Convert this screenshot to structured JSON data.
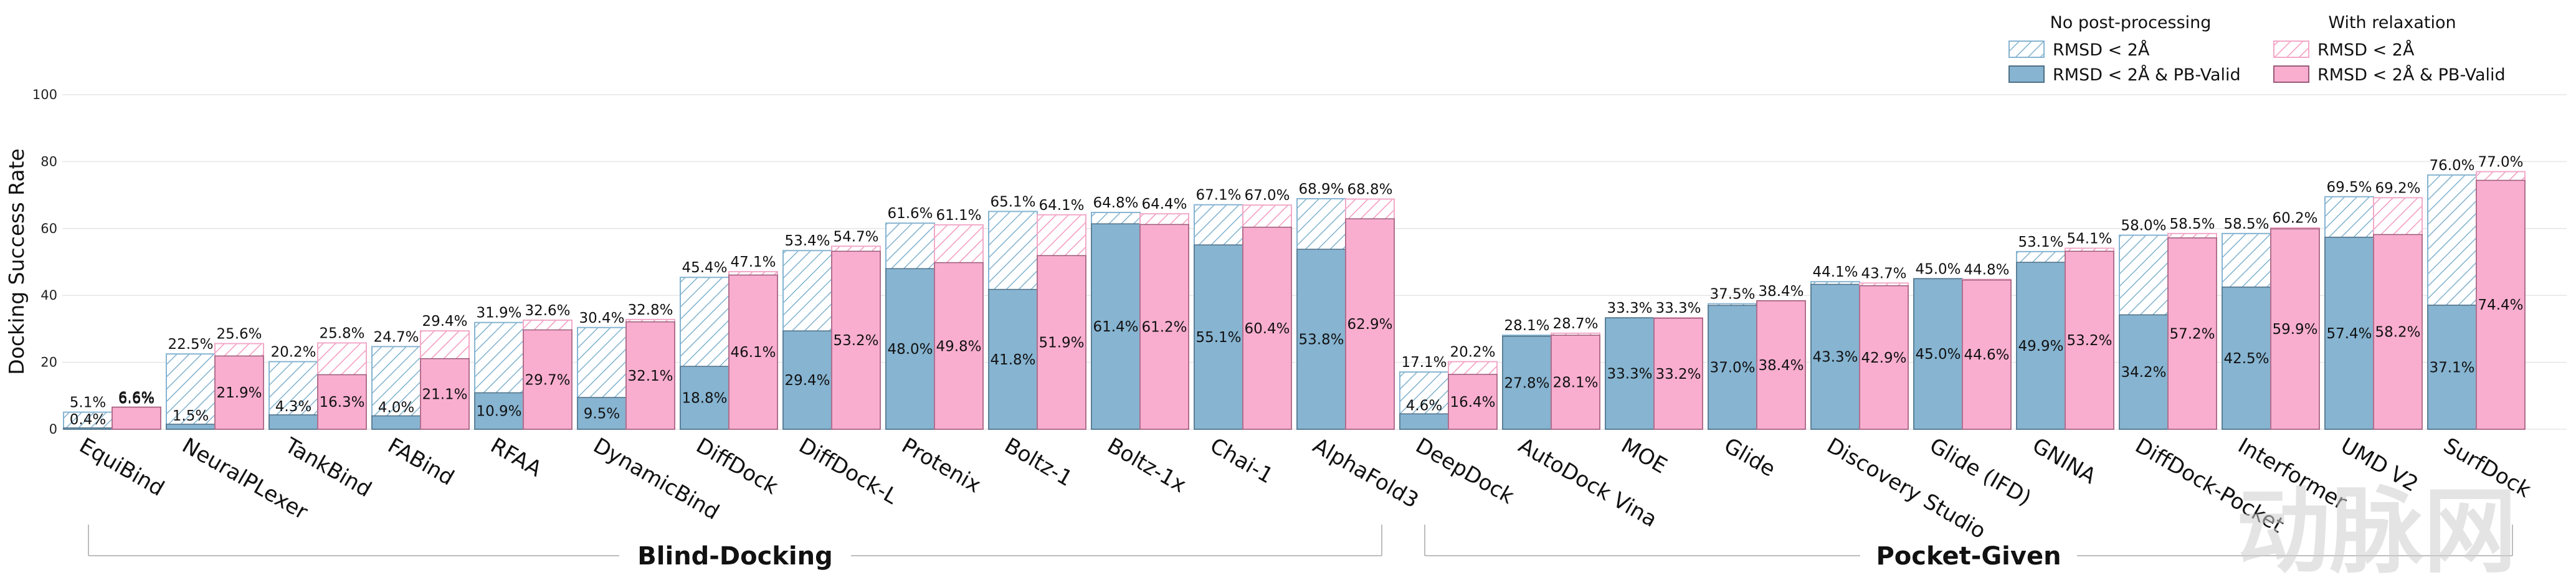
{
  "chart_data": {
    "type": "bar",
    "ylabel": "Docking Success Rate",
    "ylim": [
      0,
      100
    ],
    "yticks": [
      0,
      20,
      40,
      60,
      80,
      100
    ],
    "grid": true,
    "legend": {
      "position": "top-right",
      "header_left": "No post-processing",
      "header_right": "With relaxation",
      "entries": [
        {
          "name": "RMSD < 2Å",
          "group": "No post-processing",
          "style": "hatched",
          "color": "#86b4d1"
        },
        {
          "name": "RMSD < 2Å & PB-Valid",
          "group": "No post-processing",
          "style": "solid",
          "color": "#86b4d1"
        },
        {
          "name": "RMSD < 2Å",
          "group": "With relaxation",
          "style": "hatched",
          "color": "#f2a9c8"
        },
        {
          "name": "RMSD < 2Å & PB-Valid",
          "group": "With relaxation",
          "style": "solid",
          "color": "#f9aecf"
        }
      ]
    },
    "groups": [
      {
        "label": "Blind-Docking",
        "first": 0,
        "last": 12
      },
      {
        "label": "Pocket-Given",
        "first": 13,
        "last": 23
      }
    ],
    "series": [
      {
        "name": "No post-processing · RMSD < 2Å",
        "values": [
          5.1,
          22.5,
          20.2,
          24.7,
          31.9,
          30.4,
          45.4,
          53.4,
          61.6,
          65.1,
          64.8,
          67.1,
          68.9,
          17.1,
          28.1,
          33.3,
          37.5,
          44.1,
          45.0,
          53.1,
          58.0,
          58.5,
          69.5,
          76.0
        ]
      },
      {
        "name": "No post-processing · RMSD < 2Å & PB-Valid",
        "values": [
          0.4,
          1.5,
          4.3,
          4.0,
          10.9,
          9.5,
          18.8,
          29.4,
          48.0,
          41.8,
          61.4,
          55.1,
          53.8,
          4.6,
          27.8,
          33.3,
          37.0,
          43.3,
          45.0,
          49.9,
          34.2,
          42.5,
          57.4,
          37.1
        ]
      },
      {
        "name": "With relaxation · RMSD < 2Å",
        "values": [
          6.6,
          25.6,
          25.8,
          29.4,
          32.6,
          32.8,
          47.1,
          54.7,
          61.1,
          64.1,
          64.4,
          67.0,
          68.8,
          20.2,
          28.7,
          33.3,
          38.4,
          43.7,
          44.8,
          54.1,
          58.5,
          60.2,
          69.2,
          77.0
        ]
      },
      {
        "name": "With relaxation · RMSD < 2Å & PB-Valid",
        "values": [
          6.6,
          21.9,
          16.3,
          21.1,
          29.7,
          32.1,
          46.1,
          53.2,
          49.8,
          51.9,
          61.2,
          60.4,
          62.9,
          16.4,
          28.1,
          33.2,
          38.4,
          42.9,
          44.6,
          53.2,
          57.2,
          59.9,
          58.2,
          74.4
        ]
      }
    ],
    "categories": [
      "EquiBind",
      "NeuralPLexer",
      "TankBind",
      "FABind",
      "RFAA",
      "DynamicBind",
      "DiffDock",
      "DiffDock-L",
      "Protenix",
      "Boltz-1",
      "Boltz-1x",
      "Chai-1",
      "AlphaFold3",
      "DeepDock",
      "AutoDock Vina",
      "MOE",
      "Glide",
      "Discovery Studio",
      "Glide (IFD)",
      "GNINA",
      "DiffDock-Pocket",
      "Interformer",
      "UMD V2",
      "SurfDock"
    ],
    "value_labels": {
      "no_pp_rmsd": [
        "5.1%",
        "22.5%",
        "20.2%",
        "24.7%",
        "31.9%",
        "30.4%",
        "45.4%",
        "53.4%",
        "61.6%",
        "65.1%",
        "64.8%",
        "67.1%",
        "68.9%",
        "17.1%",
        "28.1%",
        "33.3%",
        "37.5%",
        "44.1%",
        "45.0%",
        "53.1%",
        "58.0%",
        "58.5%",
        "69.5%",
        "76.0%"
      ],
      "no_pp_valid": [
        "0.4%",
        "1.5%",
        "4.3%",
        "4.0%",
        "10.9%",
        "9.5%",
        "18.8%",
        "29.4%",
        "48.0%",
        "41.8%",
        "61.4%",
        "55.1%",
        "53.8%",
        "4.6%",
        "27.8%",
        "33.3%",
        "37.0%",
        "43.3%",
        "45.0%",
        "49.9%",
        "34.2%",
        "42.5%",
        "57.4%",
        "37.1%"
      ],
      "relax_rmsd": [
        "6.6%",
        "25.6%",
        "25.8%",
        "29.4%",
        "32.6%",
        "32.8%",
        "47.1%",
        "54.7%",
        "61.1%",
        "64.1%",
        "64.4%",
        "67.0%",
        "68.8%",
        "20.2%",
        "28.7%",
        "33.3%",
        "38.4%",
        "43.7%",
        "44.8%",
        "54.1%",
        "58.5%",
        "60.2%",
        "69.2%",
        "77.0%"
      ],
      "relax_valid": [
        "6.6%",
        "21.9%",
        "16.3%",
        "21.1%",
        "29.7%",
        "32.1%",
        "46.1%",
        "53.2%",
        "49.8%",
        "51.9%",
        "61.2%",
        "60.4%",
        "62.9%",
        "16.4%",
        "28.1%",
        "33.2%",
        "38.4%",
        "42.9%",
        "44.6%",
        "53.2%",
        "57.2%",
        "59.9%",
        "58.2%",
        "74.4%"
      ]
    }
  },
  "colors": {
    "blue": "#86b4d1",
    "blue_edge": "#4f6f86",
    "pink": "#f9aecf",
    "pink_edge": "#9a5a78",
    "hatch_blue": "#7fb2cf",
    "hatch_pink": "#f39ac0",
    "grid": "#e6e6e6"
  },
  "watermark": {
    "text": "动脉网"
  }
}
